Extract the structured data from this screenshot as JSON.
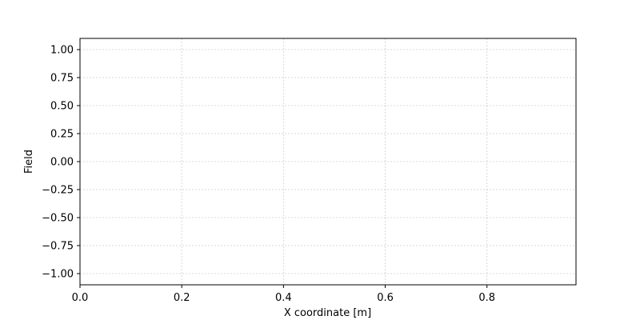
{
  "chart_data": {
    "type": "line",
    "title": "",
    "xlabel": "X coordinate [m]",
    "ylabel": "Field",
    "xlim": [
      0.0,
      0.975
    ],
    "ylim": [
      -1.1,
      1.1
    ],
    "x_ticks": [
      0.0,
      0.2,
      0.4,
      0.6,
      0.8
    ],
    "x_tick_labels": [
      "0.0",
      "0.2",
      "0.4",
      "0.6",
      "0.8"
    ],
    "y_ticks": [
      1.0,
      0.75,
      0.5,
      0.25,
      0.0,
      -0.25,
      -0.5,
      -0.75,
      -1.0
    ],
    "y_tick_labels": [
      "1.00",
      "0.75",
      "0.50",
      "0.25",
      "0.00",
      "−0.25",
      "−0.50",
      "−0.75",
      "−1.00"
    ],
    "grid": true,
    "series": [],
    "colors": {
      "axes": "#000000",
      "grid": "#b0b0b0",
      "background": "#ffffff"
    }
  }
}
